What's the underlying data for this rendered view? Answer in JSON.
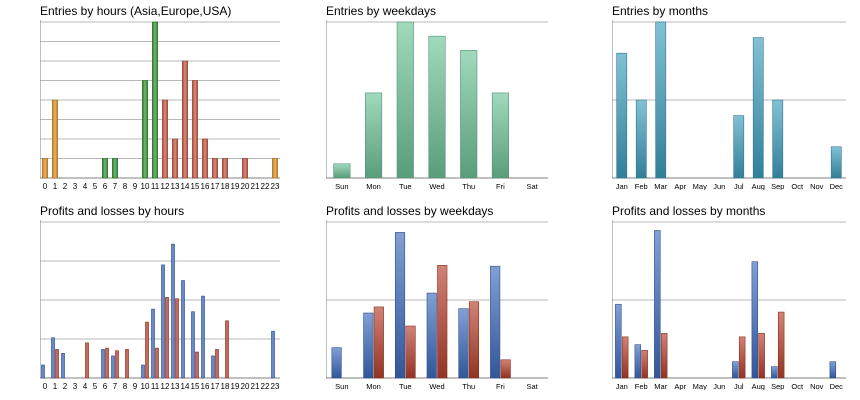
{
  "colors": {
    "orange": "#d98a1c",
    "green": "#2c8f2c",
    "red": "#c0503c",
    "mint": "#6fc49a",
    "teal": "#3f9fbf",
    "blue": "#3f6bbf",
    "crimson": "#b8402c",
    "grid": "#a0a0a0",
    "axis": "#808080"
  },
  "chart_data": [
    {
      "type": "bar",
      "title": "Entries by hours (Asia,Europe,USA)",
      "categories": [
        "0",
        "1",
        "2",
        "3",
        "4",
        "5",
        "6",
        "7",
        "8",
        "9",
        "10",
        "11",
        "12",
        "13",
        "14",
        "15",
        "16",
        "17",
        "18",
        "19",
        "20",
        "21",
        "22",
        "23"
      ],
      "series": [
        {
          "values": [
            1,
            4,
            0,
            0,
            0,
            0,
            1,
            1,
            0,
            0,
            5,
            8,
            4,
            2,
            6,
            5,
            2,
            1,
            1,
            0,
            1,
            0,
            0,
            1
          ],
          "colors": [
            "orange",
            "orange",
            "orange",
            "orange",
            "orange",
            "orange",
            "green",
            "green",
            "green",
            "green",
            "green",
            "green",
            "red",
            "red",
            "red",
            "red",
            "red",
            "red",
            "red",
            "red",
            "red",
            "red",
            "red",
            "orange"
          ]
        }
      ],
      "yticks": [
        0,
        1,
        2,
        3,
        4,
        5,
        6,
        7,
        8
      ],
      "ylim": [
        0,
        8
      ],
      "grid": true,
      "gradient": false
    },
    {
      "type": "bar",
      "title": "Entries by weekdays",
      "categories": [
        "Sun",
        "Mon",
        "Tue",
        "Wed",
        "Thu",
        "Fri",
        "Sat"
      ],
      "series": [
        {
          "values": [
            1,
            6,
            11,
            10,
            9,
            6,
            0
          ],
          "colors": [
            "mint",
            "mint",
            "mint",
            "mint",
            "mint",
            "mint",
            "mint"
          ]
        }
      ],
      "yticks": [
        0,
        11
      ],
      "ylim": [
        0,
        11
      ],
      "grid": true,
      "gradient": true
    },
    {
      "type": "bar",
      "title": "Entries by months",
      "categories": [
        "Jan",
        "Feb",
        "Mar",
        "Apr",
        "May",
        "Jun",
        "Jul",
        "Aug",
        "Sep",
        "Oct",
        "Nov",
        "Dec"
      ],
      "series": [
        {
          "values": [
            8,
            5,
            10,
            0,
            0,
            0,
            4,
            9,
            5,
            0,
            0,
            2
          ],
          "colors": [
            "teal",
            "teal",
            "teal",
            "teal",
            "teal",
            "teal",
            "teal",
            "teal",
            "teal",
            "teal",
            "teal",
            "teal"
          ]
        }
      ],
      "yticks": [
        0,
        5,
        10
      ],
      "ylim": [
        0,
        10
      ],
      "grid": true,
      "gradient": true
    },
    {
      "type": "bar",
      "title": "Profits and losses by hours",
      "categories": [
        "0",
        "1",
        "2",
        "3",
        "4",
        "5",
        "6",
        "7",
        "8",
        "9",
        "10",
        "11",
        "12",
        "13",
        "14",
        "15",
        "16",
        "17",
        "18",
        "19",
        "20",
        "21",
        "22",
        "23"
      ],
      "series": [
        {
          "values": [
            50,
            155,
            95,
            0,
            0,
            0,
            110,
            85,
            0,
            0,
            50,
            265,
            435,
            515,
            375,
            255,
            315,
            85,
            0,
            0,
            0,
            0,
            0,
            180
          ],
          "color": "blue"
        },
        {
          "values": [
            0,
            110,
            0,
            0,
            135,
            0,
            115,
            105,
            110,
            0,
            215,
            115,
            310,
            305,
            0,
            100,
            0,
            110,
            220,
            0,
            0,
            0,
            0,
            0
          ],
          "color": "crimson"
        }
      ],
      "yticks": [
        0,
        150,
        300,
        450,
        600
      ],
      "ylim": [
        0,
        600
      ],
      "grid": true,
      "gradient": false
    },
    {
      "type": "bar",
      "title": "Profits and losses by weekdays",
      "categories": [
        "Sun",
        "Mon",
        "Tue",
        "Wed",
        "Thu",
        "Fri",
        "Sat"
      ],
      "series": [
        {
          "values": [
            175,
            375,
            840,
            490,
            400,
            645,
            0
          ],
          "color": "blue"
        },
        {
          "values": [
            0,
            410,
            300,
            650,
            440,
            105,
            0
          ],
          "color": "crimson"
        }
      ],
      "yticks": [
        0,
        450,
        900
      ],
      "ylim": [
        0,
        900
      ],
      "grid": true,
      "gradient": true
    },
    {
      "type": "bar",
      "title": "Profits and losses by months",
      "categories": [
        "Jan",
        "Feb",
        "Mar",
        "Apr",
        "May",
        "Jun",
        "Jul",
        "Aug",
        "Sep",
        "Oct",
        "Nov",
        "Dec"
      ],
      "series": [
        {
          "values": [
            520,
            235,
            1040,
            0,
            0,
            0,
            115,
            820,
            80,
            0,
            0,
            115
          ],
          "color": "blue"
        },
        {
          "values": [
            290,
            195,
            315,
            0,
            0,
            0,
            290,
            315,
            465,
            0,
            0,
            0
          ],
          "color": "crimson"
        }
      ],
      "yticks": [
        0,
        550,
        1100
      ],
      "ylim": [
        0,
        1100
      ],
      "grid": true,
      "gradient": true
    }
  ]
}
